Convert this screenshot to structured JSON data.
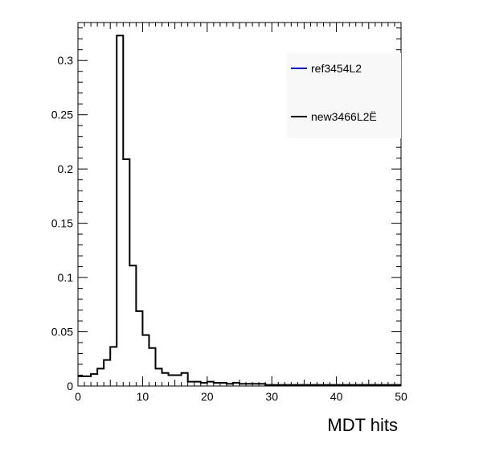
{
  "chart_data": {
    "type": "bar",
    "xlabel": "MDT hits",
    "ylabel": "",
    "xlim": [
      0,
      50
    ],
    "ylim": [
      0,
      0.335
    ],
    "x_ticks": [
      0,
      10,
      20,
      30,
      40,
      50
    ],
    "y_ticks": [
      0,
      0.05,
      0.1,
      0.15,
      0.2,
      0.25,
      0.3
    ],
    "y_tick_labels": [
      "0",
      "0.05",
      "0.1",
      "0.15",
      "0.2",
      "0.25",
      "0.3"
    ],
    "grid": false,
    "legend_position": "top-right",
    "series": [
      {
        "name": "ref3454L2",
        "color": "#0000ff",
        "bin_edges_start": 0,
        "bin_width": 1,
        "values": []
      },
      {
        "name": "new3466L2Ë",
        "color": "#000000",
        "bin_edges_start": 0,
        "bin_width": 1,
        "values": [
          0.009,
          0.009,
          0.011,
          0.016,
          0.024,
          0.036,
          0.323,
          0.209,
          0.111,
          0.069,
          0.047,
          0.035,
          0.016,
          0.012,
          0.01,
          0.01,
          0.012,
          0.004,
          0.004,
          0.003,
          0.004,
          0.003,
          0.003,
          0.002,
          0.003,
          0.002,
          0.002,
          0.002,
          0.002,
          0.001,
          0.001,
          0.001,
          0.001,
          0.001,
          0.001,
          0.001,
          0.001,
          0.001,
          0.001,
          0.001,
          0.001,
          0.001,
          0.001,
          0.001,
          0.001,
          0.001,
          0.001,
          0.001,
          0.001,
          0.001
        ]
      }
    ]
  }
}
